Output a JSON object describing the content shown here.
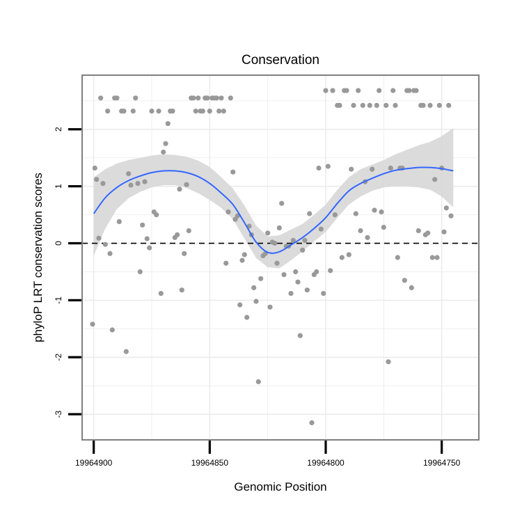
{
  "chart_data": {
    "type": "scatter",
    "title": "Conservation",
    "xlabel": "Genomic Position",
    "ylabel": "phyloP LRT conservation scores",
    "x_reversed": true,
    "xlim": [
      19964905,
      19964734
    ],
    "ylim": [
      -3.45,
      2.95
    ],
    "x_ticks": [
      19964900,
      19964850,
      19964800,
      19964750
    ],
    "x_tick_labels": [
      "19964900",
      "19964850",
      "19964800",
      "19964750"
    ],
    "y_ticks": [
      -3,
      -2,
      -1,
      0,
      1,
      2
    ],
    "y_tick_labels": [
      "-3",
      "-2",
      "-1",
      "0",
      "1",
      "2"
    ],
    "grid": true,
    "legend": "none",
    "reference_line": {
      "y": 0,
      "style": "dashed"
    },
    "colors": {
      "points": "#999999",
      "smooth": "#3366ff",
      "band": "#d9d9d9",
      "frame": "#7f7f7f",
      "grid": "#ebebeb"
    },
    "points": [
      [
        19964900.5,
        -1.42
      ],
      [
        19964899.5,
        1.32
      ],
      [
        19964898.8,
        1.12
      ],
      [
        19964897.8,
        0.09
      ],
      [
        19964897,
        2.55
      ],
      [
        19964896,
        1.05
      ],
      [
        19964895,
        -0.02
      ],
      [
        19964894,
        2.32
      ],
      [
        19964893,
        -0.18
      ],
      [
        19964892,
        -1.52
      ],
      [
        19964891,
        2.55
      ],
      [
        19964890,
        2.55
      ],
      [
        19964889,
        0.38
      ],
      [
        19964888,
        2.32
      ],
      [
        19964887,
        2.32
      ],
      [
        19964886,
        -1.9
      ],
      [
        19964885,
        1.22
      ],
      [
        19964884,
        1.02
      ],
      [
        19964883,
        2.32
      ],
      [
        19964882,
        2.55
      ],
      [
        19964881,
        1.05
      ],
      [
        19964880,
        -0.5
      ],
      [
        19964879,
        0.32
      ],
      [
        19964878,
        1.08
      ],
      [
        19964877,
        0.08
      ],
      [
        19964876,
        -0.08
      ],
      [
        19964875,
        2.32
      ],
      [
        19964874,
        0.55
      ],
      [
        19964873,
        0.5
      ],
      [
        19964872,
        2.32
      ],
      [
        19964871,
        -0.88
      ],
      [
        19964870,
        1.6
      ],
      [
        19964869,
        1.75
      ],
      [
        19964868,
        2.1
      ],
      [
        19964867,
        2.32
      ],
      [
        19964866,
        2.32
      ],
      [
        19964865,
        0.1
      ],
      [
        19964864,
        0.15
      ],
      [
        19964863,
        0.95
      ],
      [
        19964862,
        -0.82
      ],
      [
        19964861,
        -0.18
      ],
      [
        19964860,
        1.03
      ],
      [
        19964859,
        0.22
      ],
      [
        19964858,
        2.55
      ],
      [
        19964857,
        2.55
      ],
      [
        19964856,
        2.32
      ],
      [
        19964855,
        2.55
      ],
      [
        19964854,
        2.32
      ],
      [
        19964853,
        2.32
      ],
      [
        19964852,
        2.55
      ],
      [
        19964851,
        2.55
      ],
      [
        19964850,
        2.32
      ],
      [
        19964849,
        2.55
      ],
      [
        19964848,
        2.55
      ],
      [
        19964847,
        2.55
      ],
      [
        19964846,
        2.32
      ],
      [
        19964845,
        2.55
      ],
      [
        19964844,
        2.32
      ],
      [
        19964843,
        -0.35
      ],
      [
        19964842,
        0.55
      ],
      [
        19964841,
        2.55
      ],
      [
        19964840,
        1.25
      ],
      [
        19964839,
        0.42
      ],
      [
        19964838,
        0.48
      ],
      [
        19964837,
        -1.08
      ],
      [
        19964836,
        -0.3
      ],
      [
        19964835,
        -0.2
      ],
      [
        19964834,
        -1.3
      ],
      [
        19964833,
        0.3
      ],
      [
        19964832,
        0.15
      ],
      [
        19964831,
        -0.78
      ],
      [
        19964830,
        -1.02
      ],
      [
        19964829,
        -2.43
      ],
      [
        19964828,
        -0.62
      ],
      [
        19964827,
        -0.22
      ],
      [
        19964826,
        -0.18
      ],
      [
        19964825,
        0.18
      ],
      [
        19964824,
        -1.12
      ],
      [
        19964823,
        0.02
      ],
      [
        19964822,
        0.0
      ],
      [
        19964821,
        -0.35
      ],
      [
        19964820,
        0.27
      ],
      [
        19964819,
        0.7
      ],
      [
        19964818,
        -0.55
      ],
      [
        19964817,
        -0.05
      ],
      [
        19964816,
        -0.05
      ],
      [
        19964815,
        -0.88
      ],
      [
        19964814,
        0.05
      ],
      [
        19964813,
        -0.5
      ],
      [
        19964812,
        -0.68
      ],
      [
        19964811,
        -1.62
      ],
      [
        19964810,
        -0.12
      ],
      [
        19964809,
        0.05
      ],
      [
        19964808,
        -0.82
      ],
      [
        19964807,
        0.52
      ],
      [
        19964806,
        -3.15
      ],
      [
        19964805,
        -0.55
      ],
      [
        19964804,
        -0.5
      ],
      [
        19964803,
        1.32
      ],
      [
        19964802,
        0.25
      ],
      [
        19964801,
        -0.88
      ],
      [
        19964800,
        2.68
      ],
      [
        19964799,
        1.35
      ],
      [
        19964798,
        -0.48
      ],
      [
        19964797,
        2.68
      ],
      [
        19964796,
        0.5
      ],
      [
        19964795,
        2.42
      ],
      [
        19964794,
        2.42
      ],
      [
        19964793,
        -0.25
      ],
      [
        19964792,
        2.68
      ],
      [
        19964791,
        2.68
      ],
      [
        19964790,
        -0.2
      ],
      [
        19964789,
        1.3
      ],
      [
        19964788,
        2.42
      ],
      [
        19964787,
        0.52
      ],
      [
        19964786,
        2.68
      ],
      [
        19964785,
        0.22
      ],
      [
        19964784,
        2.42
      ],
      [
        19964783,
        1.08
      ],
      [
        19964782,
        0.1
      ],
      [
        19964781,
        2.42
      ],
      [
        19964780,
        1.3
      ],
      [
        19964779,
        0.58
      ],
      [
        19964778,
        2.42
      ],
      [
        19964777,
        2.68
      ],
      [
        19964776,
        0.55
      ],
      [
        19964775,
        0.28
      ],
      [
        19964774,
        2.42
      ],
      [
        19964773,
        -2.08
      ],
      [
        19964772,
        1.32
      ],
      [
        19964771,
        2.68
      ],
      [
        19964770,
        2.42
      ],
      [
        19964769,
        -0.25
      ],
      [
        19964768,
        1.32
      ],
      [
        19964767,
        1.32
      ],
      [
        19964766,
        -0.65
      ],
      [
        19964765,
        2.68
      ],
      [
        19964764,
        2.68
      ],
      [
        19964763,
        -0.78
      ],
      [
        19964762,
        2.68
      ],
      [
        19964761,
        2.68
      ],
      [
        19964760,
        0.22
      ],
      [
        19964759,
        2.42
      ],
      [
        19964758,
        2.42
      ],
      [
        19964757,
        0.15
      ],
      [
        19964756,
        0.18
      ],
      [
        19964755,
        2.42
      ],
      [
        19964754,
        -0.25
      ],
      [
        19964753,
        1.12
      ],
      [
        19964752,
        -0.25
      ],
      [
        19964751,
        2.42
      ],
      [
        19964750,
        1.32
      ],
      [
        19964749,
        0.2
      ],
      [
        19964748,
        0.62
      ],
      [
        19964747,
        2.42
      ],
      [
        19964746,
        0.48
      ]
    ],
    "smooth": {
      "x": [
        19964900,
        19964895,
        19964890,
        19964885,
        19964880,
        19964875,
        19964870,
        19964865,
        19964860,
        19964855,
        19964850,
        19964845,
        19964840,
        19964835,
        19964830,
        19964825,
        19964820,
        19964815,
        19964810,
        19964805,
        19964800,
        19964795,
        19964790,
        19964785,
        19964780,
        19964775,
        19964770,
        19964765,
        19964760,
        19964755,
        19964750,
        19964745
      ],
      "y": [
        0.52,
        0.8,
        0.98,
        1.1,
        1.18,
        1.24,
        1.27,
        1.27,
        1.24,
        1.17,
        1.05,
        0.88,
        0.68,
        0.36,
        0.02,
        -0.16,
        -0.15,
        -0.03,
        0.1,
        0.26,
        0.45,
        0.7,
        0.92,
        1.05,
        1.14,
        1.22,
        1.28,
        1.31,
        1.33,
        1.33,
        1.31,
        1.27
      ],
      "lower": [
        -0.22,
        0.26,
        0.6,
        0.79,
        0.9,
        0.98,
        1.02,
        1.02,
        0.97,
        0.88,
        0.76,
        0.62,
        0.42,
        0.08,
        -0.26,
        -0.42,
        -0.44,
        -0.3,
        -0.14,
        0.03,
        0.2,
        0.45,
        0.68,
        0.82,
        0.92,
        0.98,
        1.0,
        1.0,
        0.98,
        0.94,
        0.82,
        0.63
      ],
      "upper": [
        1.16,
        1.3,
        1.4,
        1.46,
        1.5,
        1.54,
        1.56,
        1.55,
        1.52,
        1.45,
        1.34,
        1.16,
        0.96,
        0.66,
        0.31,
        0.12,
        0.14,
        0.24,
        0.34,
        0.5,
        0.68,
        0.94,
        1.16,
        1.3,
        1.38,
        1.46,
        1.56,
        1.64,
        1.72,
        1.78,
        1.88,
        2.02
      ]
    }
  }
}
